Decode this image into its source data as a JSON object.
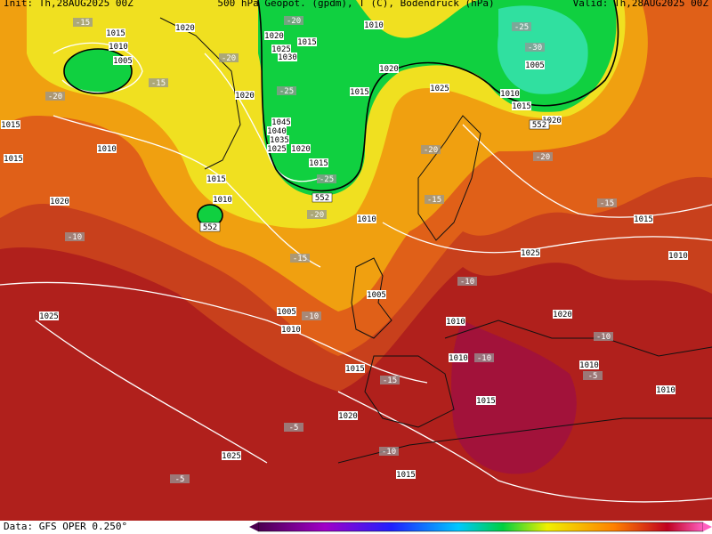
{
  "header": {
    "init": "Init: Th,28AUG2025 00Z",
    "title": "500 hPa Geopot. (gpdm), T (C), Bodendruck (hPa)",
    "valid": "Valid: Th,28AUG2025 00Z"
  },
  "footer": {
    "source": "Data: GFS OPER 0.250°"
  },
  "isobar_labels": [
    "1015",
    "1010",
    "1005",
    "1020",
    "1020",
    "1015",
    "1025",
    "1030",
    "1010",
    "1020",
    "1015",
    "1025",
    "1010",
    "1015",
    "1020",
    "1005",
    "1020",
    "1045",
    "1040",
    "1035",
    "1025",
    "1020",
    "1015",
    "1015",
    "1015",
    "1010",
    "1015",
    "1010",
    "1020",
    "1010",
    "1015",
    "1025",
    "1010",
    "1005",
    "1005",
    "1010",
    "1025",
    "1010",
    "1020",
    "1010",
    "1015",
    "1010",
    "1010",
    "1015",
    "1020",
    "1025",
    "1015"
  ],
  "temperature_labels": [
    "-15",
    "-20",
    "-20",
    "-15",
    "-20",
    "-25",
    "-25",
    "-20",
    "-20",
    "-25",
    "-30",
    "-20",
    "-15",
    "-15",
    "-15",
    "-10",
    "-10",
    "-10",
    "-10",
    "-10",
    "-15",
    "-5",
    "-5",
    "-10",
    "-5"
  ],
  "height_labels": [
    "552",
    "552",
    "552"
  ]
}
